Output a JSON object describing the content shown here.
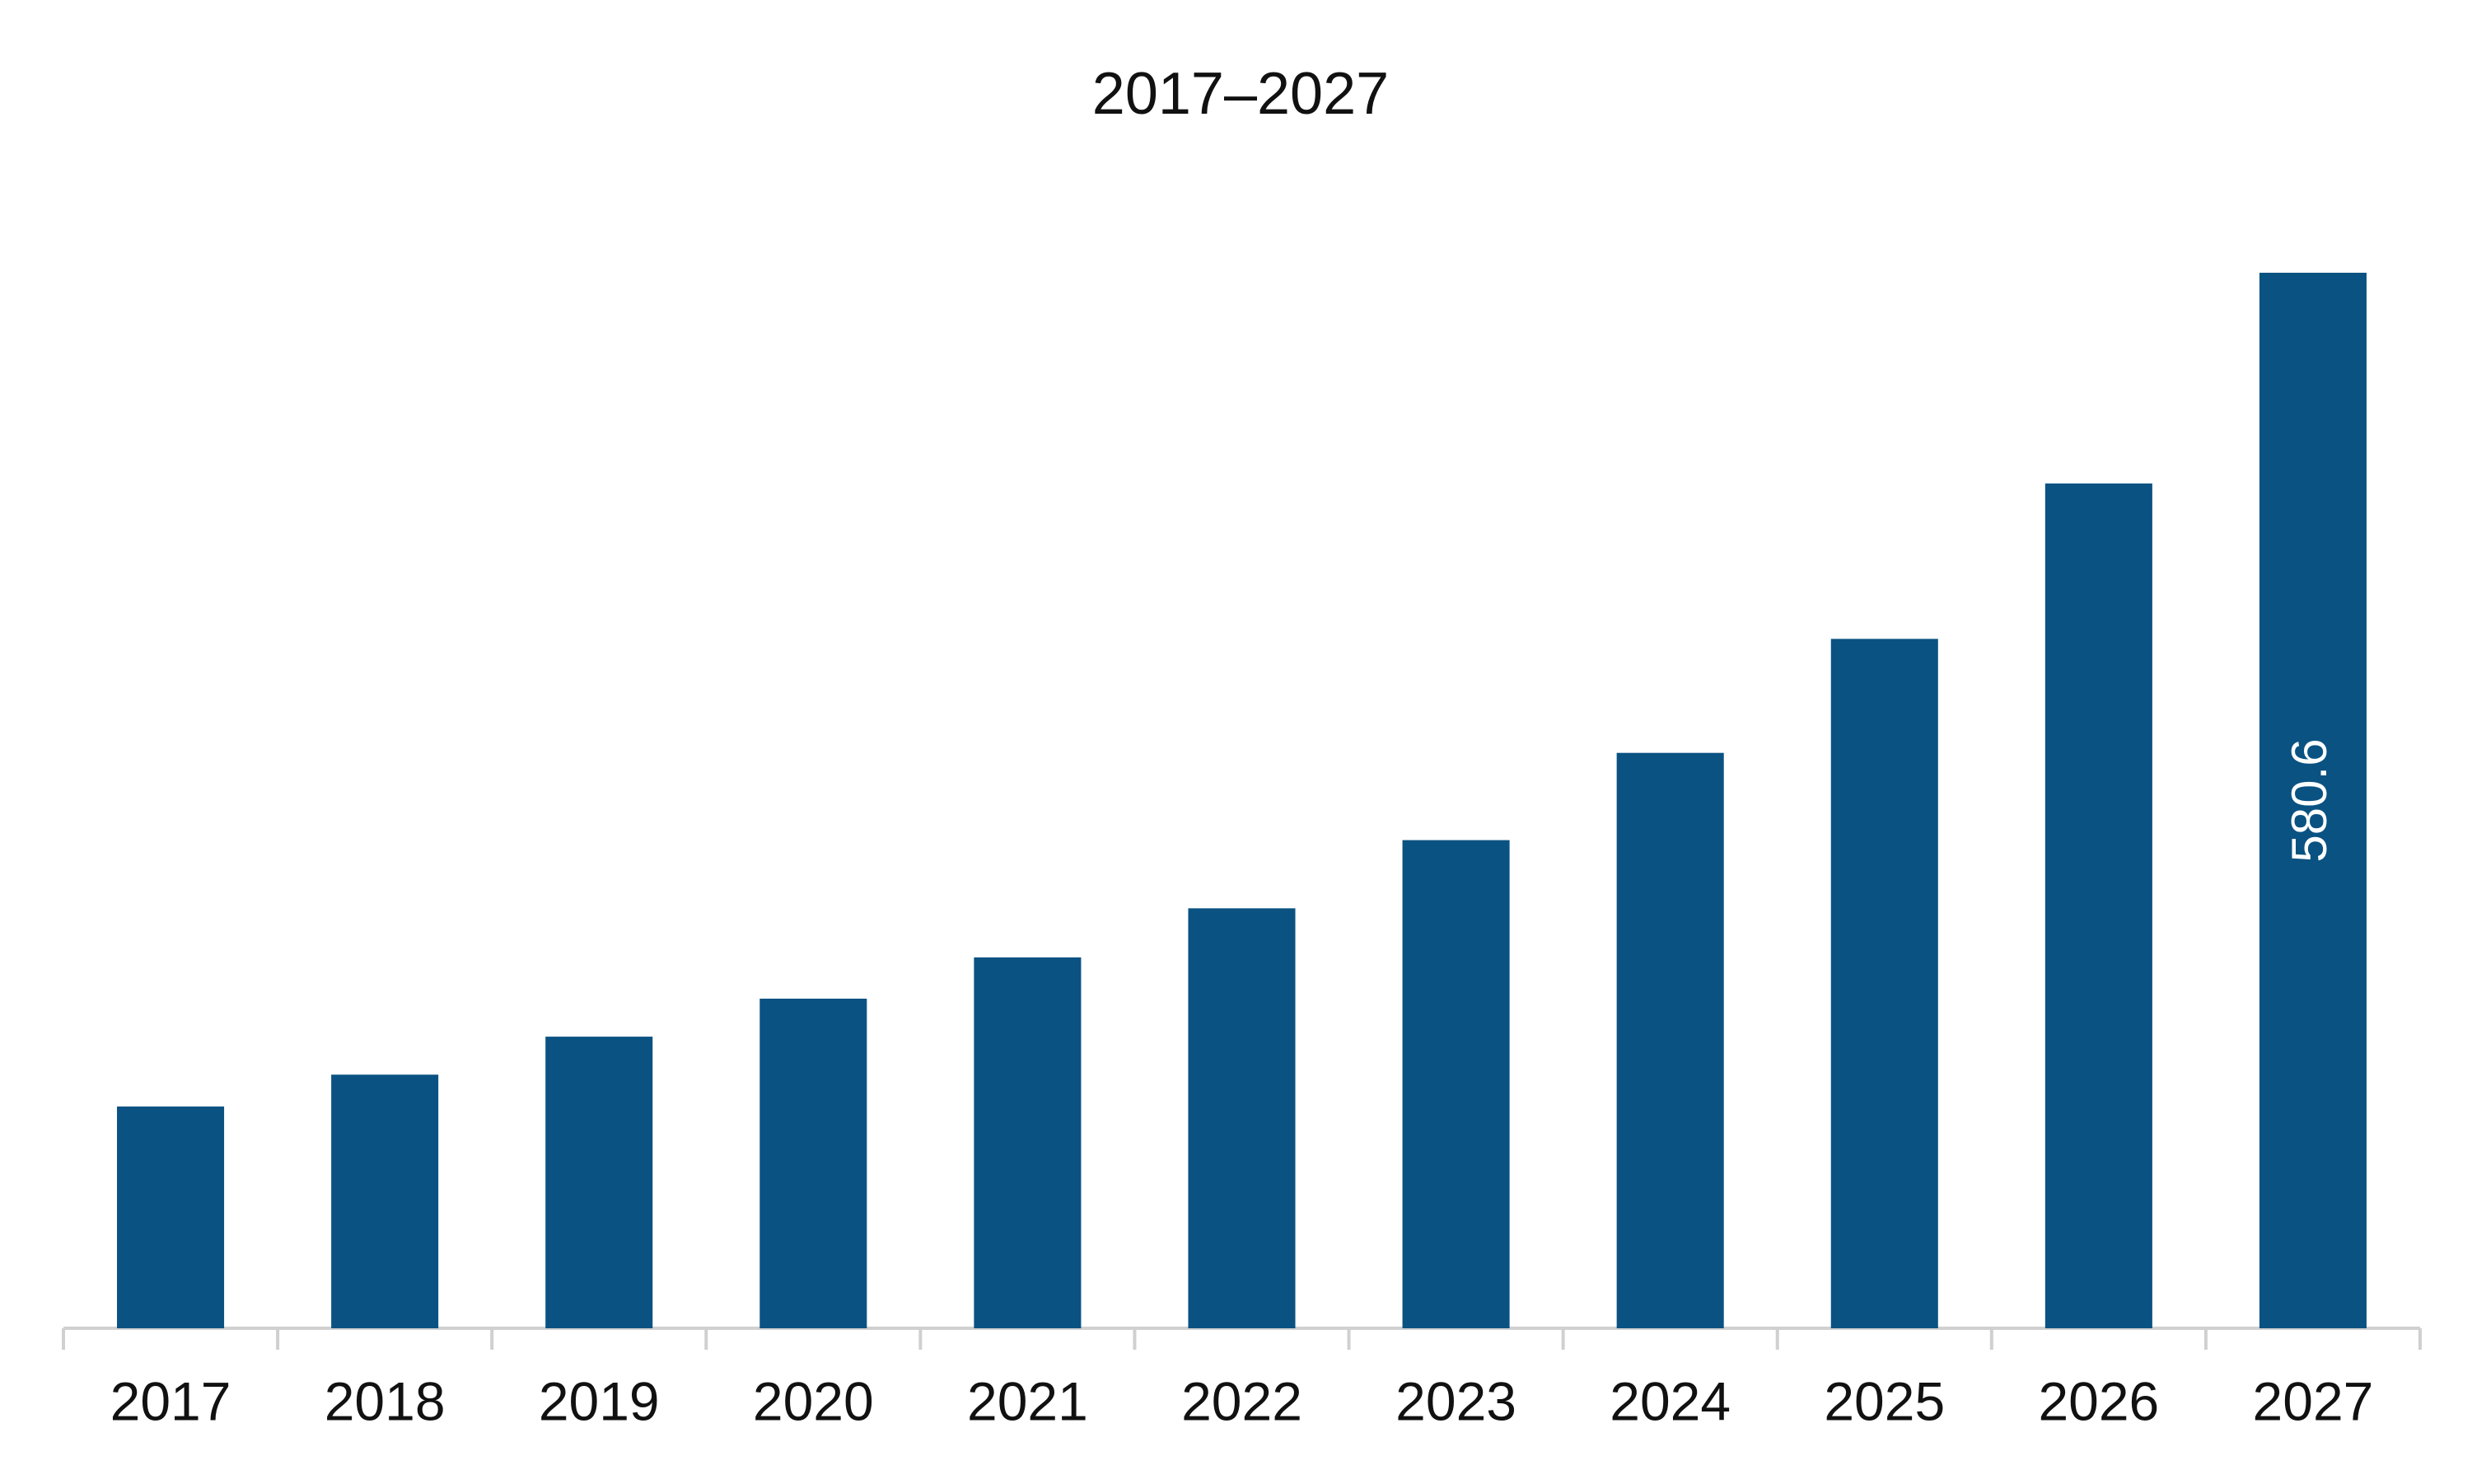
{
  "chart_data": {
    "type": "bar",
    "title": "2017–2027",
    "categories": [
      "2017",
      "2018",
      "2019",
      "2020",
      "2021",
      "2022",
      "2023",
      "2024",
      "2025",
      "2026",
      "2027"
    ],
    "values": [
      122.0,
      139.5,
      160.4,
      181.3,
      204.0,
      231.0,
      268.5,
      316.5,
      379.2,
      464.7,
      580.6
    ],
    "value_labels": [
      null,
      null,
      null,
      null,
      null,
      null,
      null,
      null,
      null,
      null,
      "580.6"
    ],
    "color": "#0a5282"
  }
}
